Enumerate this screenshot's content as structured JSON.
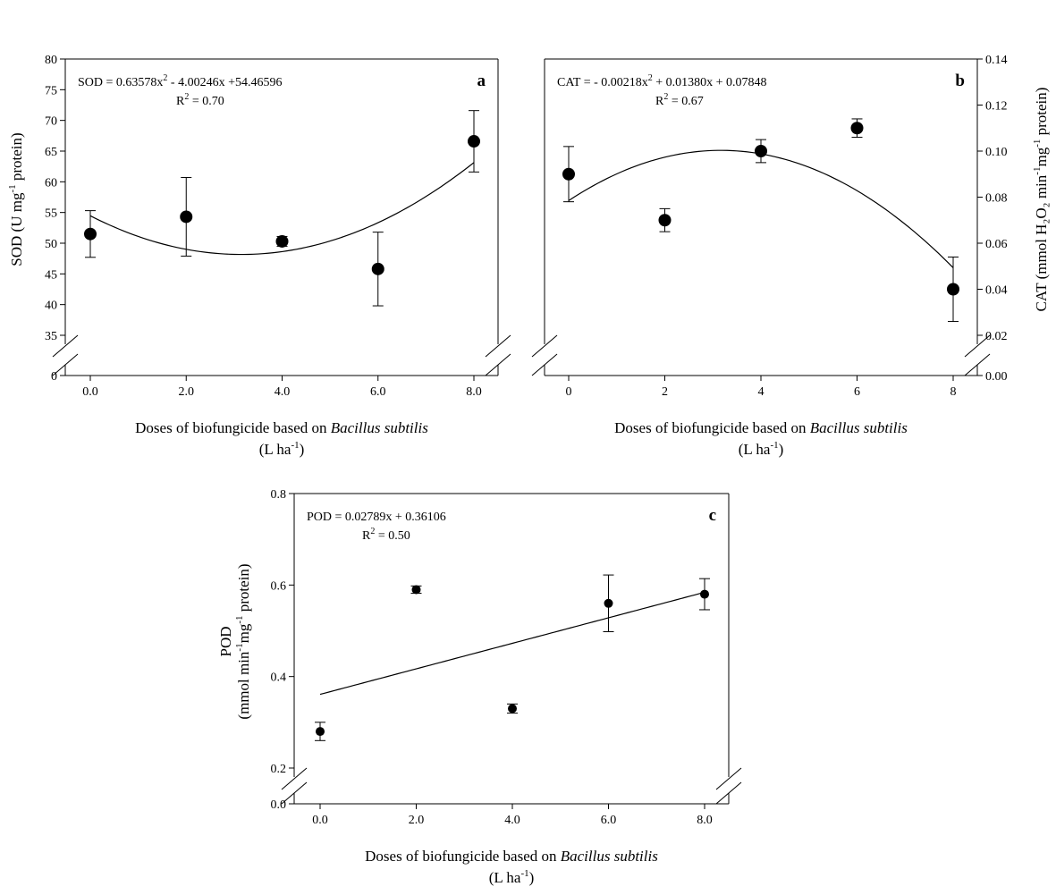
{
  "chart_data": [
    {
      "id": "a",
      "type": "scatter",
      "panel_label": "a",
      "x": [
        0,
        2,
        4,
        6,
        8
      ],
      "y": [
        51.5,
        54.3,
        50.3,
        45.8,
        66.6
      ],
      "error": [
        3.8,
        6.4,
        0.8,
        6.0,
        5.0
      ],
      "fit": {
        "type": "quadratic",
        "coefficients": [
          0.63578,
          -4.00246,
          54.46596
        ]
      },
      "equation_main": "SOD = 0.63578x",
      "equation_sup": "2",
      "equation_rest": " - 4.00246x +54.46596",
      "r2_prefix": "R",
      "r2_sup": "2",
      "r2_rest": " = 0.70",
      "ylabel_main": "SOD (U mg",
      "ylabel_sup": "-1",
      "ylabel_rest": " protein)",
      "xlabel_text": "Doses of biofungicide based on ",
      "xlabel_italic": "Bacillus subtilis",
      "xunit_open": "(L ha",
      "xunit_sup": "-1",
      "xunit_close": ")",
      "ylim": [
        35,
        80
      ],
      "y_break_bottom": 0,
      "yticks": [
        "35",
        "40",
        "45",
        "50",
        "55",
        "60",
        "65",
        "70",
        "75",
        "80"
      ],
      "ytick_bottom": "0",
      "xticks": [
        "0.0",
        "2.0",
        "4.0",
        "6.0",
        "8.0"
      ],
      "y_axis_side": "left",
      "grid": false
    },
    {
      "id": "b",
      "type": "scatter",
      "panel_label": "b",
      "x": [
        0,
        2,
        4,
        6,
        8
      ],
      "y": [
        0.09,
        0.07,
        0.1,
        0.11,
        0.04
      ],
      "error": [
        0.012,
        0.005,
        0.005,
        0.004,
        0.014
      ],
      "fit": {
        "type": "quadratic",
        "coefficients": [
          -0.00218,
          0.0138,
          0.07848
        ]
      },
      "equation_main": "CAT = - 0.00218x",
      "equation_sup": "2",
      "equation_rest": " + 0.01380x + 0.07848",
      "r2_prefix": "R",
      "r2_sup": "2",
      "r2_rest": " = 0.67",
      "ylabel_main": "CAT (mmol H₂O₂ min",
      "ylabel_sup": "-1",
      "ylabel_mid": "mg",
      "ylabel_sup2": "-1",
      "ylabel_rest": " protein)",
      "xlabel_text": "Doses of biofungicide based on ",
      "xlabel_italic": "Bacillus subtilis",
      "xunit_open": "(L ha",
      "xunit_sup": "-1",
      "xunit_close": ")",
      "ylim": [
        0.02,
        0.14
      ],
      "y_break_bottom": 0,
      "yticks": [
        "0.02",
        "0.04",
        "0.06",
        "0.08",
        "0.10",
        "0.12",
        "0.14"
      ],
      "ytick_bottom": "0.00",
      "xticks": [
        "0",
        "2",
        "4",
        "6",
        "8"
      ],
      "y_axis_side": "right",
      "grid": false
    },
    {
      "id": "c",
      "type": "scatter",
      "panel_label": "c",
      "x": [
        0,
        2,
        4,
        6,
        8
      ],
      "y": [
        0.28,
        0.59,
        0.33,
        0.56,
        0.58
      ],
      "error": [
        0.02,
        0.008,
        0.01,
        0.062,
        0.034
      ],
      "fit": {
        "type": "linear",
        "coefficients": [
          0.02789,
          0.36106
        ]
      },
      "equation_main": "POD = 0.02789x + 0.36106",
      "r2_prefix": "R",
      "r2_sup": "2",
      "r2_rest": " = 0.50",
      "ylabel_line1": "POD",
      "ylabel_main": "(mmol min",
      "ylabel_sup": "-1",
      "ylabel_mid": "mg",
      "ylabel_sup2": "-1",
      "ylabel_rest": " protein)",
      "xlabel_text": "Doses of biofungicide based on ",
      "xlabel_italic": "Bacillus subtilis",
      "xunit_open": "(L ha",
      "xunit_sup": "-1",
      "xunit_close": ")",
      "ylim": [
        0.2,
        0.8
      ],
      "y_break_bottom": 0,
      "yticks": [
        "0.2",
        "0.4",
        "0.6",
        "0.8"
      ],
      "ytick_bottom": "0.0",
      "xticks": [
        "0.0",
        "2.0",
        "4.0",
        "6.0",
        "8.0"
      ],
      "y_axis_side": "left",
      "grid": false
    }
  ]
}
